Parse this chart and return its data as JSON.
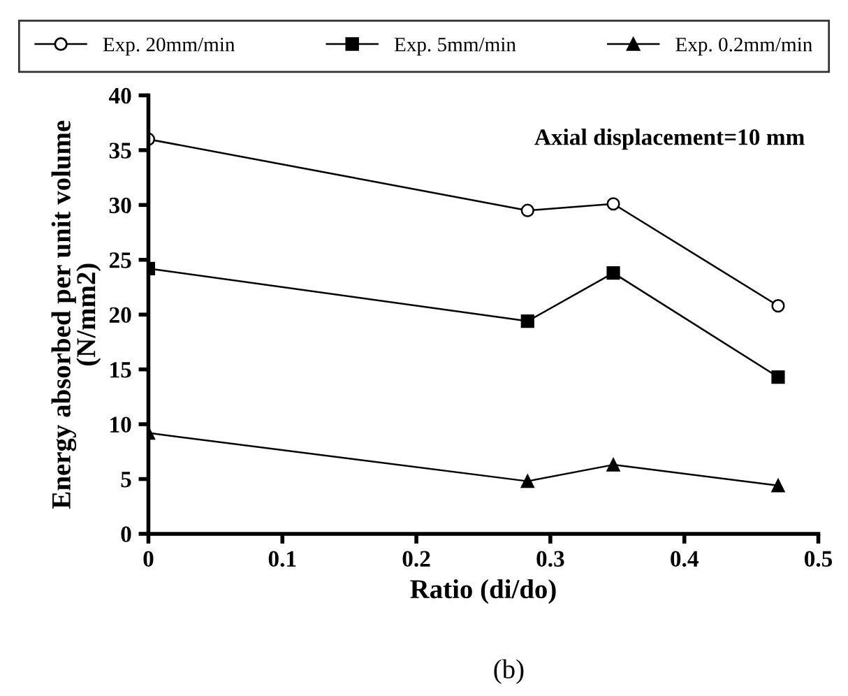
{
  "chart_data": {
    "type": "line",
    "xlabel": "Ratio (di/do)",
    "ylabel": "Energy absorbed per unit volume\n(N/mm2)",
    "x": [
      0,
      0.283,
      0.347,
      0.47
    ],
    "series": [
      {
        "name": "Exp. 20mm/min",
        "color": "#000000",
        "marker": "circle",
        "values": [
          36,
          29.5,
          30.1,
          20.8
        ]
      },
      {
        "name": "Exp. 5mm/min",
        "color": "#000000",
        "marker": "square",
        "values": [
          24.2,
          19.4,
          23.8,
          14.3
        ]
      },
      {
        "name": "Exp. 0.2mm/min",
        "color": "#000000",
        "marker": "triangle",
        "values": [
          9.2,
          4.8,
          6.3,
          4.4
        ]
      }
    ],
    "xlim": [
      0,
      0.5
    ],
    "xticks": [
      0,
      0.1,
      0.2,
      0.3,
      0.4,
      0.5
    ],
    "ylim": [
      0,
      40
    ],
    "yticks": [
      0,
      5,
      10,
      15,
      20,
      25,
      30,
      35,
      40
    ],
    "grid": false,
    "legend": "top",
    "line_style": "solid",
    "annotations": [
      "Axial displacement=10 mm",
      "(b)"
    ]
  }
}
